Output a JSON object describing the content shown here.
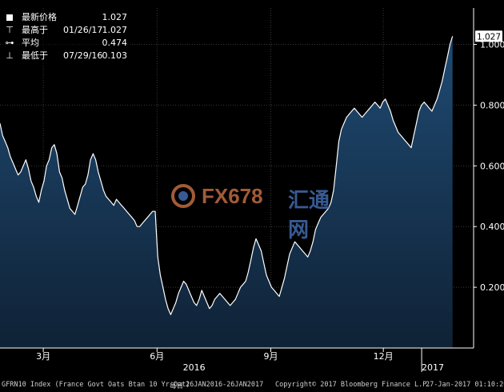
{
  "legend": {
    "rows": [
      {
        "symbol": "square",
        "label": "最新价格",
        "date": "",
        "value": "1.027"
      },
      {
        "symbol": "high",
        "label": "最高于",
        "date": "01/26/17",
        "value": "1.027"
      },
      {
        "symbol": "avg",
        "label": "平均",
        "date": "",
        "value": "0.474"
      },
      {
        "symbol": "low",
        "label": "最低于",
        "date": "07/29/16",
        "value": "0.103"
      }
    ]
  },
  "last_value_tag": "1.027",
  "watermark": {
    "text": "FX678",
    "text2": "汇通网"
  },
  "footer": {
    "left": "GFRN10 Index (France Govt Oats Btan 10 Yr Oat)",
    "middle_label": "每日",
    "range": "26JAN2016-26JAN2017",
    "copyright": "Copyright© 2017 Bloomberg Finance L.P.",
    "timestamp": "27-Jan-2017 01:10:20"
  },
  "colors": {
    "line": "#ffffff",
    "area_top": "#1f4a72",
    "area_bottom": "#0f2236",
    "grid": "#3a3a3a",
    "axis_text": "#ffffff"
  },
  "chart_data": {
    "type": "area",
    "title": "",
    "x_start": "2016-01-26",
    "x_end": "2017-01-26",
    "xlim": [
      "2016-01-26",
      "2017-02-12"
    ],
    "ylim": [
      0.0,
      1.12
    ],
    "y_ticks": [
      "0.200",
      "0.400",
      "0.600",
      "0.800",
      "1.000"
    ],
    "grid": true,
    "y_axis_side": "right",
    "x_ticks": [
      {
        "date": "2016-03-01",
        "label": "3月"
      },
      {
        "date": "2016-06-01",
        "label": "6月"
      },
      {
        "date": "2016-09-01",
        "label": "9月"
      },
      {
        "date": "2016-12-01",
        "label": "12月"
      }
    ],
    "year_labels": [
      {
        "date": "2016-07-01",
        "label": "2016"
      },
      {
        "date": "2017-01-10",
        "label": "2017"
      }
    ],
    "series": [
      {
        "values": [
          0.74,
          0.7,
          0.68,
          0.66,
          0.63,
          0.61,
          0.59,
          0.57,
          0.58,
          0.6,
          0.62,
          0.59,
          0.55,
          0.53,
          0.5,
          0.48,
          0.52,
          0.55,
          0.6,
          0.62,
          0.66,
          0.67,
          0.64,
          0.58,
          0.56,
          0.52,
          0.49,
          0.46,
          0.45,
          0.44,
          0.47,
          0.5,
          0.53,
          0.54,
          0.57,
          0.62,
          0.64,
          0.62,
          0.58,
          0.55,
          0.52,
          0.5,
          0.49,
          0.48,
          0.47,
          0.49,
          0.48,
          0.47,
          0.46,
          0.45,
          0.44,
          0.43,
          0.42,
          0.4,
          0.4,
          0.41,
          0.42,
          0.43,
          0.44,
          0.45,
          0.45,
          0.3,
          0.24,
          0.2,
          0.16,
          0.13,
          0.11,
          0.13,
          0.15,
          0.18,
          0.2,
          0.22,
          0.21,
          0.19,
          0.17,
          0.15,
          0.14,
          0.16,
          0.19,
          0.17,
          0.15,
          0.13,
          0.14,
          0.16,
          0.17,
          0.18,
          0.17,
          0.16,
          0.15,
          0.14,
          0.15,
          0.16,
          0.18,
          0.2,
          0.21,
          0.22,
          0.25,
          0.29,
          0.33,
          0.36,
          0.34,
          0.32,
          0.28,
          0.24,
          0.22,
          0.2,
          0.19,
          0.18,
          0.17,
          0.2,
          0.23,
          0.27,
          0.31,
          0.33,
          0.35,
          0.34,
          0.33,
          0.32,
          0.31,
          0.3,
          0.32,
          0.35,
          0.39,
          0.41,
          0.43,
          0.44,
          0.45,
          0.46,
          0.48,
          0.52,
          0.6,
          0.68,
          0.72,
          0.74,
          0.76,
          0.77,
          0.78,
          0.79,
          0.78,
          0.77,
          0.76,
          0.77,
          0.78,
          0.79,
          0.8,
          0.81,
          0.8,
          0.79,
          0.81,
          0.82,
          0.8,
          0.78,
          0.75,
          0.73,
          0.71,
          0.7,
          0.69,
          0.68,
          0.67,
          0.66,
          0.7,
          0.74,
          0.78,
          0.8,
          0.81,
          0.8,
          0.79,
          0.78,
          0.8,
          0.82,
          0.85,
          0.88,
          0.92,
          0.96,
          1.0,
          1.027
        ]
      }
    ],
    "high_value": 1.027,
    "average_value": 0.474,
    "low_value": 0.103
  }
}
